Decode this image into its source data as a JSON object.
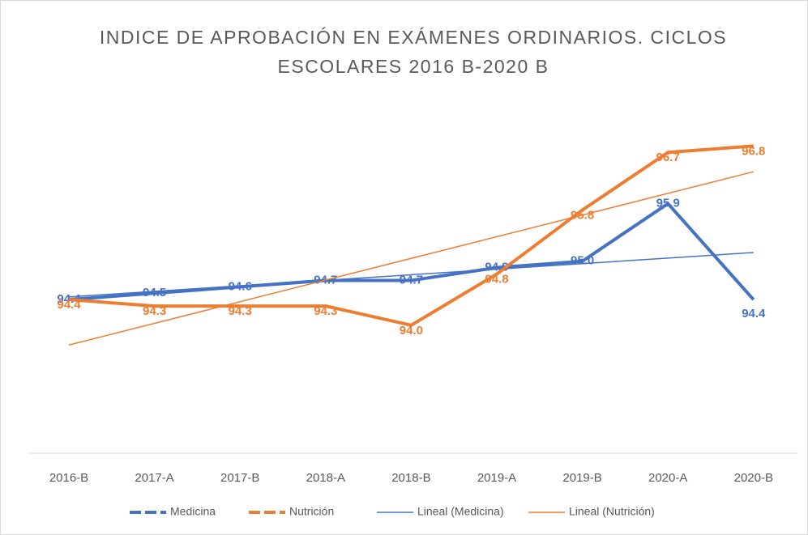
{
  "chart_data": {
    "type": "line",
    "title": "INDICE DE APROBACIÓN EN EXÁMENES ORDINARIOS. CICLOS ESCOLARES 2016 B-2020 B",
    "categories": [
      "2016-B",
      "2017-A",
      "2017-B",
      "2018-A",
      "2018-B",
      "2019-A",
      "2019-B",
      "2020-A",
      "2020-B"
    ],
    "ylim": [
      92,
      97.5
    ],
    "series": [
      {
        "name": "Medicina",
        "color": "#4472c4",
        "values": [
          94.4,
          94.5,
          94.6,
          94.7,
          94.7,
          94.9,
          95.0,
          95.9,
          94.4
        ],
        "value_labels": [
          "94.4",
          "94.5",
          "94.6",
          "94.7",
          "94.7",
          "94.9",
          "95.0",
          "95.9",
          "94.4"
        ],
        "trendline": {
          "name": "Lineal (Medicina)"
        }
      },
      {
        "name": "Nutrición",
        "color": "#ed7d31",
        "values": [
          94.4,
          94.3,
          94.3,
          94.3,
          94.0,
          94.8,
          95.8,
          96.7,
          96.8
        ],
        "value_labels": [
          "94.4",
          "94.3",
          "94.3",
          "94.3",
          "94.0",
          "94.8",
          "95.8",
          "96.7",
          "96.8"
        ],
        "trendline": {
          "name": "Lineal (Nutrición)"
        }
      }
    ]
  }
}
